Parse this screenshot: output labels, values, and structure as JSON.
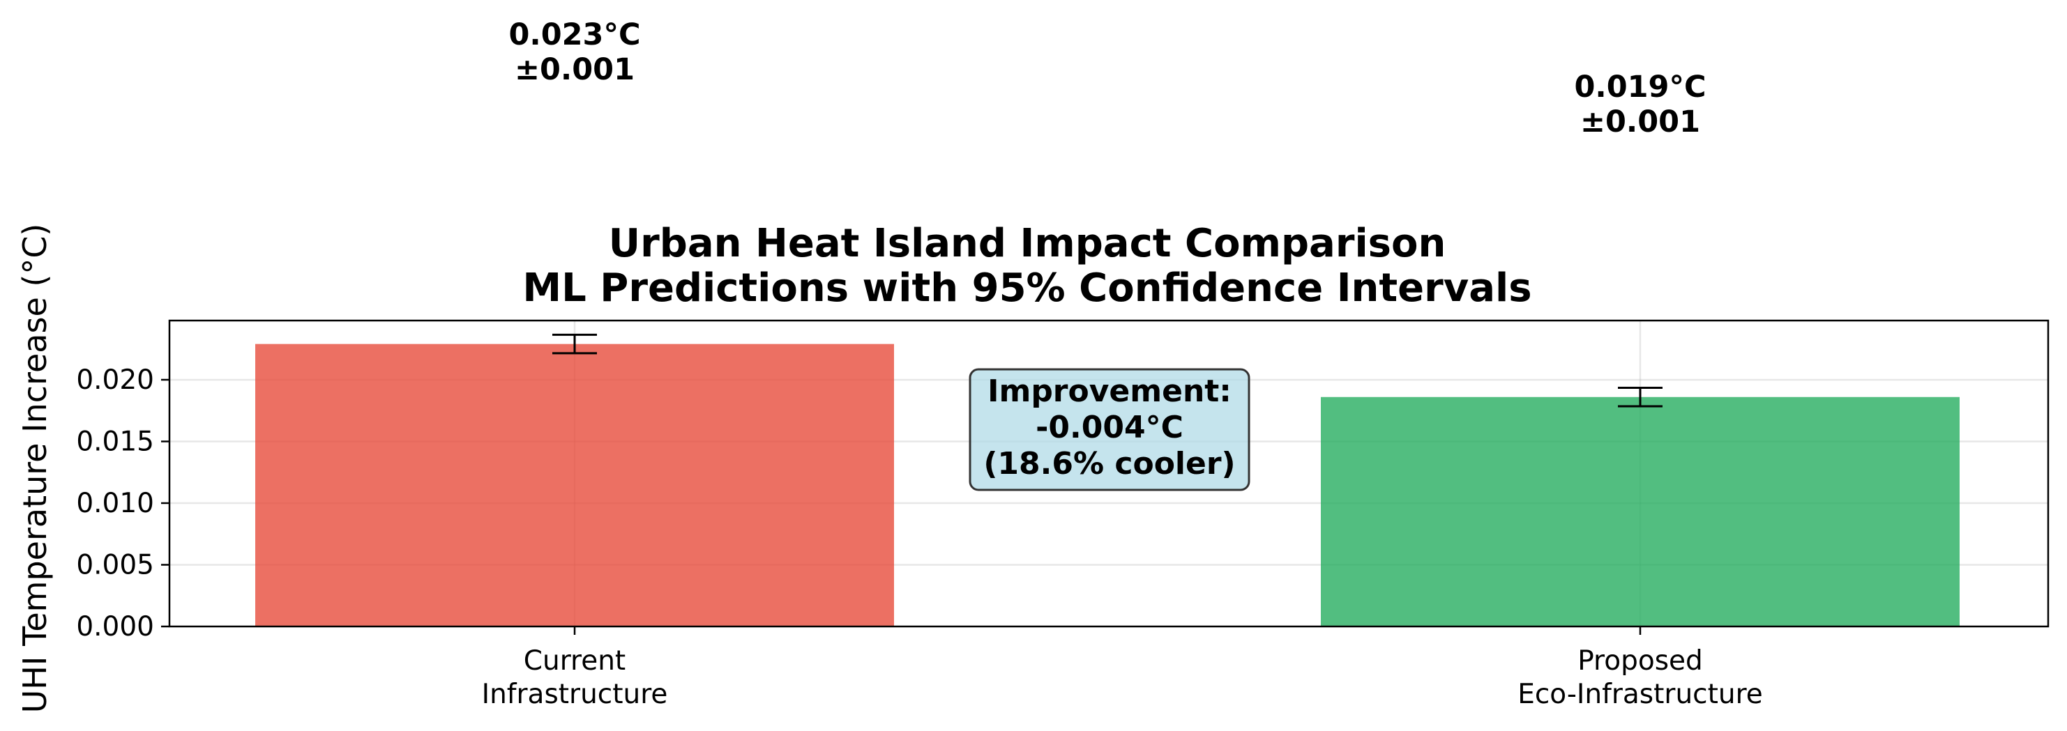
{
  "chart_data": {
    "type": "bar",
    "title_line1": "Urban Heat Island Impact Comparison",
    "title_line2": "ML Predictions with 95% Confidence Intervals",
    "xlabel": "",
    "ylabel": "UHI Temperature Increase (°C)",
    "ylim": [
      0,
      0.0248
    ],
    "yticks": [
      0.0,
      0.005,
      0.01,
      0.015,
      0.02
    ],
    "ytick_labels": [
      "0.000",
      "0.005",
      "0.010",
      "0.015",
      "0.020"
    ],
    "grid": true,
    "categories": [
      {
        "line1": "Current",
        "line2": "Infrastructure"
      },
      {
        "line1": "Proposed",
        "line2": "Eco-Infrastructure"
      }
    ],
    "values": [
      0.0229,
      0.0186
    ],
    "errors": [
      0.00075,
      0.00075
    ],
    "colors": [
      "#e74c3c",
      "#27ae60"
    ],
    "bar_labels": [
      {
        "line1": "0.023°C",
        "line2": "±0.001"
      },
      {
        "line1": "0.019°C",
        "line2": "±0.001"
      }
    ],
    "annotation": {
      "line1": "Improvement:",
      "line2": "-0.004°C",
      "line3": "(18.6% cooler)",
      "background": "#add8e6"
    }
  }
}
